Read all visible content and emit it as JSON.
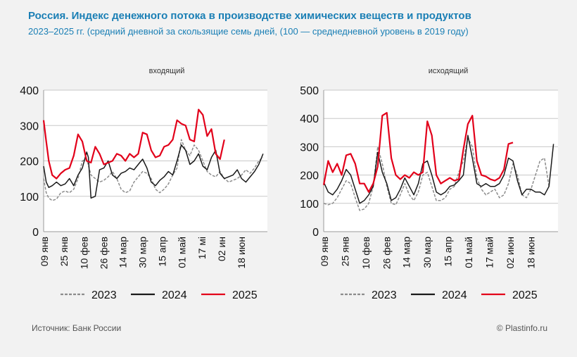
{
  "title": "Россия. Индекс денежного потока в производстве химических веществ и продуктов",
  "subtitle": "2023–2025 гг.  (средний дневной за скользящие семь дней, (100 — среднедневной уровень в 2019 году)",
  "source": "Источник: Банк России",
  "copyright": "© Plastinfo.ru",
  "colors": {
    "2023": "#8c8c8c",
    "2024": "#1a1a1a",
    "2025": "#e2001a",
    "title": "#1a7fb5"
  },
  "chart_data": [
    {
      "type": "line",
      "title": "входящий",
      "ylim": [
        0,
        400
      ],
      "yticks": [
        0,
        100,
        200,
        300,
        400
      ],
      "x_range_weeks": [
        0,
        26
      ],
      "xticks": [
        {
          "label": "09 янв",
          "week": 0
        },
        {
          "label": "25 янв",
          "week": 2.3
        },
        {
          "label": "10 фев",
          "week": 4.6
        },
        {
          "label": "26 фев",
          "week": 6.9
        },
        {
          "label": "14 мар",
          "week": 9.1
        },
        {
          "label": "30 мар",
          "week": 11.4
        },
        {
          "label": "15 апр",
          "week": 13.7
        },
        {
          "label": "01 май",
          "week": 16
        },
        {
          "label": "17 мі",
          "week": 18.3
        },
        {
          "label": "02 ин",
          "week": 20.6
        },
        {
          "label": "18 июн",
          "week": 22.9
        }
      ],
      "series": [
        {
          "name": "2023",
          "style": "dashed",
          "x": [
            0,
            0.3,
            0.6,
            1,
            1.5,
            2,
            2.5,
            3,
            3.5,
            4,
            4.5,
            5,
            5.5,
            6,
            6.5,
            7,
            7.5,
            8,
            8.5,
            9,
            9.5,
            10,
            10.5,
            11,
            11.5,
            12,
            12.5,
            13,
            13.5,
            14,
            14.5,
            15,
            15.5,
            16,
            16.5,
            17,
            17.5,
            18,
            18.5,
            19,
            19.5,
            20,
            20.5,
            21,
            21.5,
            22,
            22.5,
            23,
            23.5,
            24,
            24.5,
            25,
            25.5
          ],
          "values": [
            150,
            110,
            95,
            88,
            92,
            110,
            115,
            110,
            120,
            150,
            200,
            205,
            160,
            150,
            140,
            145,
            155,
            170,
            150,
            120,
            110,
            115,
            140,
            155,
            170,
            165,
            150,
            120,
            110,
            120,
            135,
            160,
            180,
            260,
            230,
            215,
            245,
            230,
            200,
            170,
            160,
            155,
            170,
            150,
            140,
            145,
            150,
            160,
            175,
            165,
            180,
            200,
            210
          ]
        },
        {
          "name": "2024",
          "style": "solid",
          "x": [
            0,
            0.3,
            0.6,
            1,
            1.5,
            2,
            2.5,
            3,
            3.5,
            4,
            4.5,
            5,
            5.2,
            5.5,
            6,
            6.5,
            7,
            7.5,
            8,
            8.5,
            9,
            9.5,
            10,
            10.5,
            11,
            11.5,
            12,
            12.5,
            13,
            13.5,
            14,
            14.5,
            15,
            15.5,
            16,
            16.5,
            17,
            17.5,
            18,
            18.5,
            19,
            19.5,
            20,
            20.5,
            21,
            21.5,
            22,
            22.5,
            23,
            23.5,
            24,
            24.5,
            25,
            25.5
          ],
          "values": [
            185,
            140,
            125,
            130,
            140,
            130,
            135,
            150,
            130,
            160,
            180,
            225,
            210,
            95,
            100,
            175,
            180,
            200,
            160,
            150,
            165,
            170,
            180,
            175,
            190,
            205,
            180,
            140,
            130,
            145,
            155,
            170,
            160,
            200,
            245,
            230,
            190,
            200,
            220,
            185,
            175,
            210,
            230,
            165,
            150,
            155,
            160,
            175,
            150,
            140,
            155,
            170,
            190,
            220
          ]
        },
        {
          "name": "2025",
          "style": "solid",
          "x": [
            0,
            0.3,
            0.6,
            1,
            1.5,
            2,
            2.5,
            3,
            3.5,
            4,
            4.5,
            5,
            5.5,
            6,
            6.5,
            7,
            7.5,
            8,
            8.5,
            9,
            9.5,
            10,
            10.5,
            11,
            11.5,
            12,
            12.5,
            13,
            13.5,
            14,
            14.5,
            15,
            15.5,
            16,
            16.5,
            17,
            17.5,
            18,
            18.5,
            19,
            19.5,
            20,
            20.5,
            21
          ],
          "values": [
            315,
            255,
            200,
            160,
            150,
            165,
            175,
            180,
            215,
            275,
            255,
            200,
            195,
            240,
            220,
            190,
            195,
            200,
            220,
            215,
            200,
            220,
            210,
            220,
            280,
            275,
            230,
            210,
            215,
            240,
            245,
            260,
            315,
            305,
            300,
            260,
            255,
            345,
            330,
            270,
            290,
            220,
            205,
            260
          ]
        }
      ]
    },
    {
      "type": "line",
      "title": "исходящий",
      "ylim": [
        0,
        500
      ],
      "yticks": [
        0,
        100,
        200,
        300,
        400,
        500
      ],
      "x_range_weeks": [
        0,
        26
      ],
      "xticks": [
        {
          "label": "09 янв",
          "week": 0
        },
        {
          "label": "25 янв",
          "week": 2.3
        },
        {
          "label": "10 фев",
          "week": 4.6
        },
        {
          "label": "26 фев",
          "week": 6.9
        },
        {
          "label": "14 мар",
          "week": 9.1
        },
        {
          "label": "30 мар",
          "week": 11.4
        },
        {
          "label": "15 апр",
          "week": 13.7
        },
        {
          "label": "01 май",
          "week": 16
        },
        {
          "label": "17 май",
          "week": 18.3
        },
        {
          "label": "02 июн",
          "week": 20.6
        },
        {
          "label": "18 июн",
          "week": 22.9
        }
      ],
      "series": [
        {
          "name": "2023",
          "style": "dashed",
          "x": [
            0,
            0.5,
            1,
            1.5,
            2,
            2.5,
            3,
            3.5,
            4,
            4.5,
            5,
            5.5,
            6,
            6.5,
            7,
            7.5,
            8,
            8.5,
            9,
            9.5,
            10,
            10.5,
            11,
            11.5,
            12,
            12.5,
            13,
            13.5,
            14,
            14.5,
            15,
            15.5,
            16,
            16.5,
            17,
            17.5,
            18,
            18.5,
            19,
            19.5,
            20,
            20.5,
            21,
            21.5,
            22,
            22.5,
            23,
            23.5,
            24,
            24.5,
            25
          ],
          "values": [
            100,
            95,
            100,
            120,
            150,
            180,
            170,
            120,
            75,
            80,
            100,
            160,
            300,
            240,
            160,
            100,
            95,
            130,
            170,
            130,
            110,
            140,
            200,
            210,
            160,
            110,
            110,
            120,
            150,
            160,
            210,
            250,
            330,
            300,
            190,
            150,
            130,
            140,
            150,
            120,
            130,
            170,
            240,
            200,
            130,
            120,
            150,
            200,
            250,
            260,
            160
          ]
        },
        {
          "name": "2024",
          "style": "solid",
          "x": [
            0,
            0.5,
            1,
            1.5,
            2,
            2.5,
            3,
            3.5,
            4,
            4.5,
            5,
            5.5,
            6,
            6.5,
            7,
            7.5,
            8,
            8.5,
            9,
            9.5,
            10,
            10.5,
            11,
            11.5,
            12,
            12.5,
            13,
            13.5,
            14,
            14.5,
            15,
            15.5,
            16,
            16.5,
            17,
            17.5,
            18,
            18.5,
            19,
            19.5,
            20,
            20.5,
            21,
            21.5,
            22,
            22.5,
            23,
            23.5,
            24,
            24.5,
            25,
            25.5
          ],
          "values": [
            175,
            140,
            130,
            150,
            180,
            220,
            200,
            150,
            100,
            110,
            130,
            160,
            280,
            210,
            170,
            110,
            120,
            150,
            190,
            160,
            130,
            170,
            240,
            250,
            200,
            140,
            130,
            140,
            160,
            165,
            180,
            200,
            340,
            260,
            170,
            160,
            170,
            160,
            160,
            170,
            200,
            260,
            250,
            180,
            130,
            150,
            150,
            140,
            140,
            130,
            160,
            310
          ]
        },
        {
          "name": "2025",
          "style": "solid",
          "x": [
            0,
            0.5,
            1,
            1.5,
            2,
            2.5,
            3,
            3.5,
            4,
            4.5,
            5,
            5.5,
            6,
            6.5,
            7,
            7.5,
            8,
            8.5,
            9,
            9.5,
            10,
            10.5,
            11,
            11.5,
            12,
            12.5,
            13,
            13.5,
            14,
            14.5,
            15,
            15.5,
            16,
            16.5,
            17,
            17.5,
            18,
            18.5,
            19,
            19.5,
            20,
            20.5,
            21
          ],
          "values": [
            165,
            250,
            210,
            240,
            200,
            270,
            275,
            240,
            170,
            170,
            140,
            170,
            230,
            410,
            420,
            260,
            200,
            185,
            200,
            190,
            210,
            200,
            210,
            390,
            340,
            200,
            170,
            180,
            190,
            180,
            185,
            290,
            380,
            410,
            250,
            200,
            195,
            185,
            180,
            190,
            220,
            310,
            315
          ]
        }
      ]
    }
  ],
  "legend": [
    {
      "name": "2023"
    },
    {
      "name": "2024"
    },
    {
      "name": "2025"
    }
  ]
}
